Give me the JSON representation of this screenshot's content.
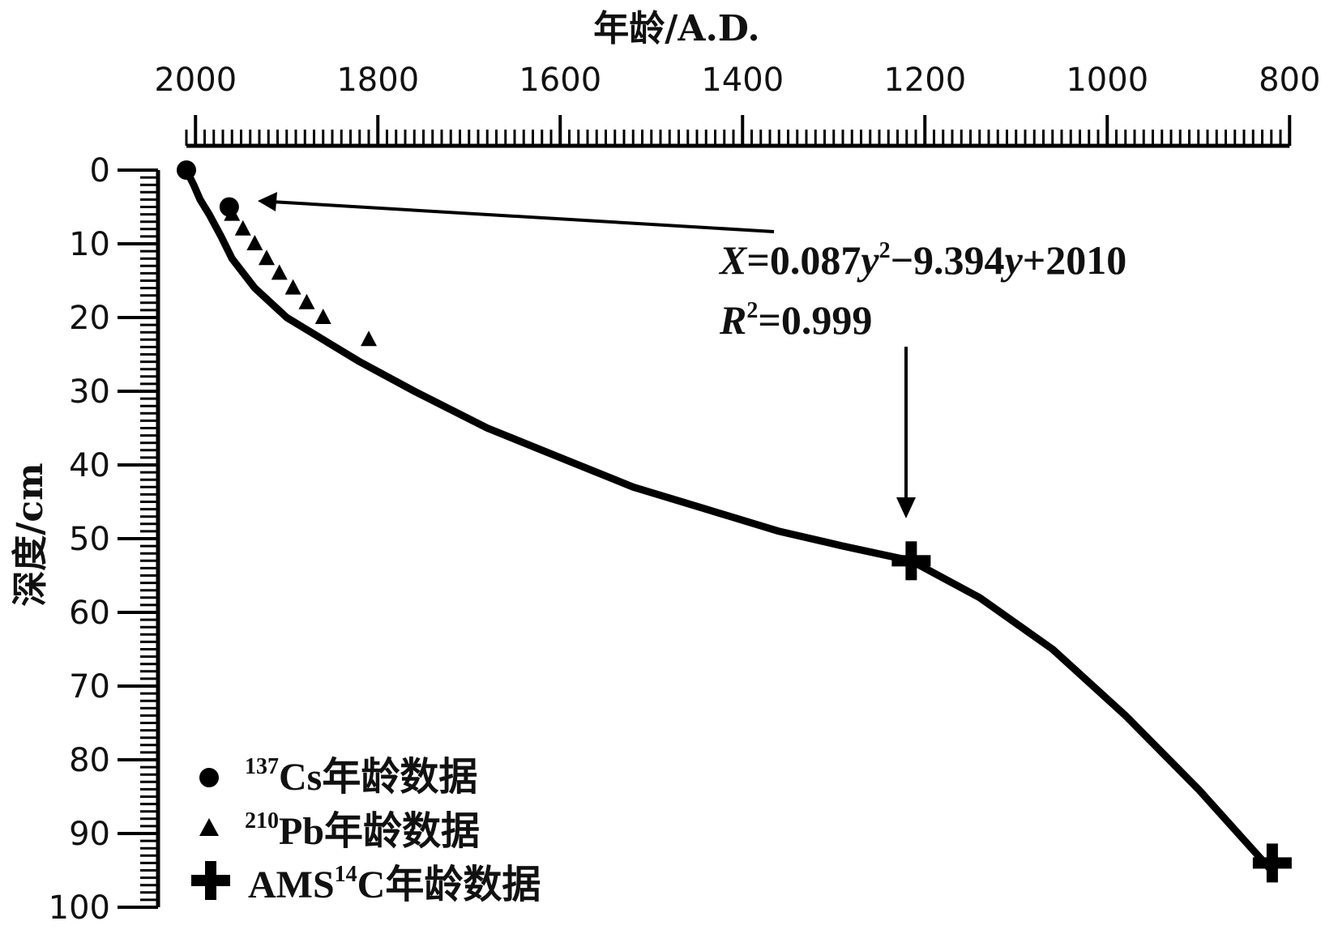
{
  "chart_data": {
    "type": "line",
    "title": "",
    "xlabel": "年龄/A.D.",
    "ylabel": "深度/cm",
    "xlim": [
      2010,
      810
    ],
    "ylim": [
      0,
      100
    ],
    "x_ticks": [
      2000,
      1800,
      1600,
      1400,
      1200,
      1000,
      800
    ],
    "y_ticks": [
      0,
      10,
      20,
      30,
      40,
      50,
      60,
      70,
      80,
      90,
      100
    ],
    "x_axis_position": "top",
    "y_inverted": true,
    "curve": {
      "x": [
        2010,
        2002,
        1995,
        1985,
        1972,
        1960,
        1935,
        1900,
        1860,
        1820,
        1760,
        1680,
        1600,
        1520,
        1440,
        1360,
        1290,
        1215,
        1140,
        1060,
        980,
        900,
        820
      ],
      "y": [
        0,
        2,
        4,
        6,
        9,
        12,
        16,
        20,
        23,
        26,
        30,
        35,
        39,
        43,
        46,
        49,
        51,
        53,
        58,
        65,
        74,
        84,
        95
      ]
    },
    "series": [
      {
        "name": "Cs年龄数据",
        "marker": "circle",
        "points": [
          [
            2010,
            0
          ],
          [
            1963,
            5
          ]
        ]
      },
      {
        "name": "Pb年龄数据",
        "marker": "triangle",
        "points": [
          [
            1960,
            6
          ],
          [
            1948,
            8
          ],
          [
            1935,
            10
          ],
          [
            1922,
            12
          ],
          [
            1908,
            14
          ],
          [
            1893,
            16
          ],
          [
            1878,
            18
          ],
          [
            1860,
            20
          ],
          [
            1810,
            23
          ]
        ]
      },
      {
        "name": "AMSC年龄数据",
        "marker": "plus",
        "points": [
          [
            1215,
            53
          ],
          [
            819,
            94
          ]
        ]
      }
    ],
    "annotations": {
      "equation": {
        "x_var": "X",
        "eq_body": "=0.087",
        "y_var": "y",
        "sup2": "2",
        "minus": "−9.394",
        "tail": "+2010"
      },
      "r2": {
        "r": "R",
        "sup2": "2",
        "value": "=0.999"
      }
    },
    "legend": {
      "placement": "bottom-left",
      "items": [
        {
          "marker": "circle",
          "sup": "137",
          "label": "Cs年龄数据"
        },
        {
          "marker": "triangle",
          "sup": "210",
          "label": "Pb年龄数据"
        },
        {
          "marker": "plus",
          "pre": "AMS",
          "sup": "14",
          "label": "C年龄数据"
        }
      ]
    }
  }
}
